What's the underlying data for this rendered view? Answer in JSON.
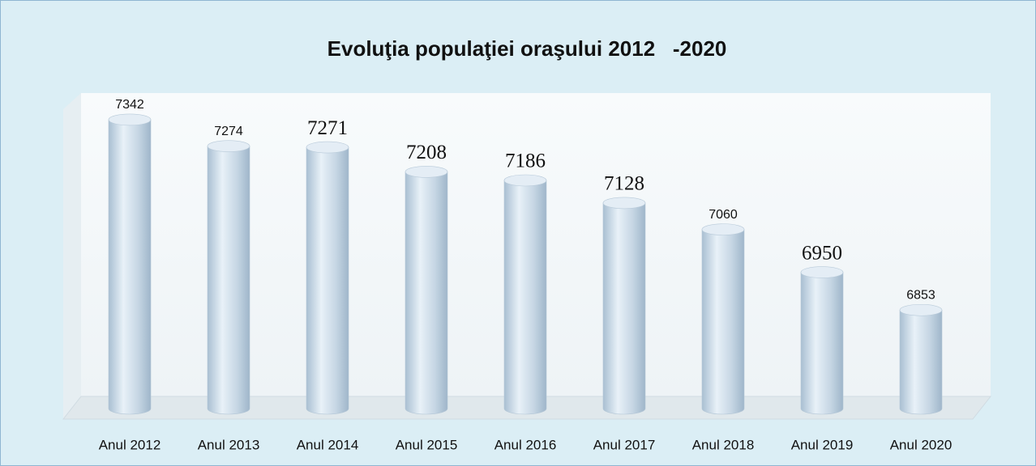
{
  "chart_data": {
    "type": "bar",
    "title": "Evoluţia populaţiei oraşului 2012   -2020",
    "categories": [
      "Anul 2012",
      "Anul 2013",
      "Anul 2014",
      "Anul 2015",
      "Anul 2016",
      "Anul 2017",
      "Anul 2018",
      "Anul 2019",
      "Anul 2020"
    ],
    "values": [
      7342,
      7274,
      7271,
      7208,
      7186,
      7128,
      7060,
      6950,
      6853
    ],
    "color": "#c6d9e8",
    "ylim": [
      6600,
      7400
    ]
  }
}
